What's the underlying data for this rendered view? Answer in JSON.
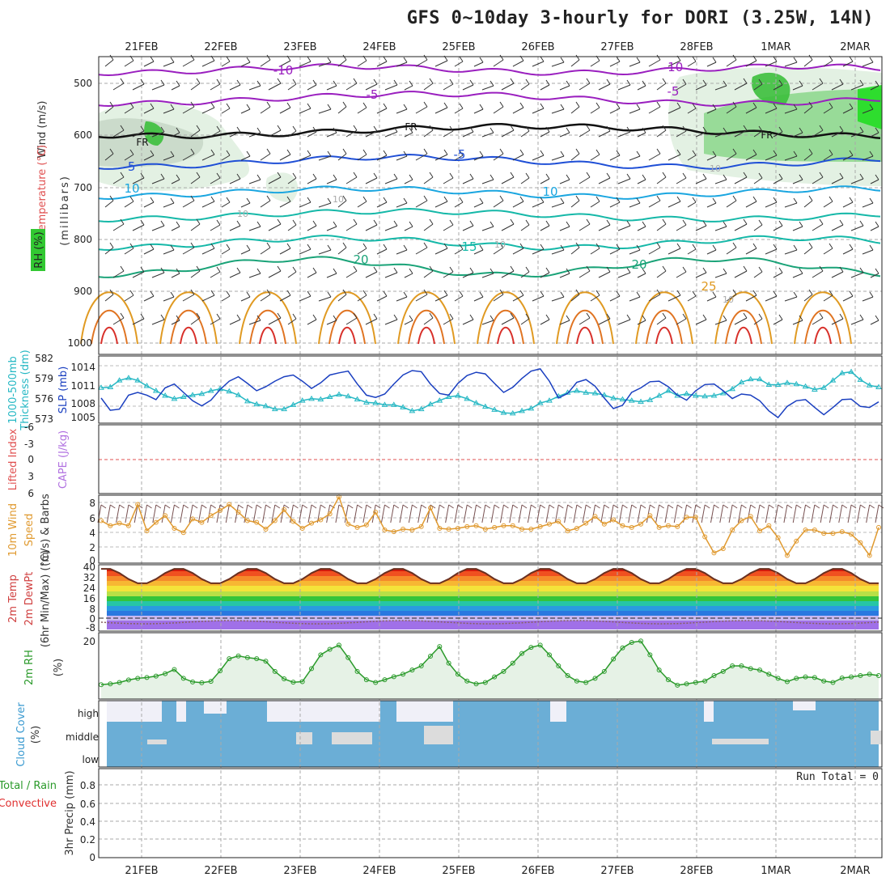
{
  "title": "GFS 0~10day 3-hourly for DORI (3.25W, 14N)",
  "dates": [
    "21FEB",
    "22FEB",
    "23FEB",
    "24FEB",
    "25FEB",
    "26FEB",
    "27FEB",
    "28FEB",
    "1MAR",
    "2MAR"
  ],
  "colors": {
    "purple": "#9a1fbf",
    "black": "#111111",
    "blue": "#1f4fd6",
    "cyan": "#1aa6e0",
    "teal": "#15b8a8",
    "green": "#1aa378",
    "orange": "#e09a22",
    "orange2": "#e07422",
    "red": "#d8302a",
    "cloud": "#6baed6",
    "cloud_light": "#f0f0f8",
    "rh_green": "#32c832",
    "rh_light": "#e0f0e0",
    "slp": "#1a3fc0",
    "thk": "#26b8c4",
    "wind10": "#e09a30",
    "rh2m": "#2a9a2a"
  },
  "panels": {
    "upper": {
      "ylabel_wind": "Wind (m/s)",
      "ylabel_temp": "Temperature (°C)",
      "ylabel_rh": "RH (%)",
      "ylabel_mb": "(millibars)",
      "yticks": [
        "500",
        "600",
        "700",
        "800",
        "900",
        "1000"
      ],
      "contour_labels": [
        "-10",
        "-10",
        "-5",
        "-5",
        "FR",
        "FR",
        "FR",
        "-5",
        "-5",
        "10",
        "10",
        "15",
        "20",
        "20",
        "25",
        "10",
        "10",
        "10",
        "10",
        "10"
      ]
    },
    "thickness": {
      "ylabel1": "1000-500mb",
      "ylabel2": "Thickness (dm)",
      "ylabel3": "SLP (mb)",
      "yticks_left": [
        "582",
        "579",
        "576",
        "573"
      ],
      "yticks_right": [
        "1014",
        "1011",
        "1008",
        "1005"
      ]
    },
    "cape": {
      "ylabel1": "Lifted Index",
      "ylabel2": "CAPE (J/kg)",
      "yticks": [
        "-6",
        "-3",
        "0",
        "3",
        "6"
      ]
    },
    "wind10": {
      "ylabel1": "10m Wind",
      "ylabel2": "Speed",
      "ylabel3": "(m/s) & Barbs",
      "yticks": [
        "8",
        "6",
        "4",
        "2",
        "0"
      ]
    },
    "temp2m": {
      "ylabel1": "2m Temp",
      "ylabel2": "2m DewPt",
      "ylabel3": "(6hr Min/Max) (°C)",
      "yticks": [
        "40",
        "32",
        "24",
        "16",
        "8",
        "0",
        "-8"
      ]
    },
    "rh2m": {
      "ylabel1": "2m RH",
      "ylabel2": "(%)",
      "yticks": [
        "20"
      ]
    },
    "cloud": {
      "ylabel1": "Cloud Cover",
      "ylabel2": "(%)",
      "levels": [
        "high",
        "middle",
        "low"
      ]
    },
    "precip": {
      "ylabel1": "Total / Rain",
      "ylabel2": "Convective",
      "ylabel3": "3hr Precip (mm)",
      "yticks": [
        "0.8",
        "0.6",
        "0.4",
        "0.2",
        "0"
      ],
      "run_total": "Run Total = 0"
    }
  },
  "chart_data": [
    {
      "type": "line",
      "title": "1000-500mb Thickness (dm)",
      "ylim": [
        572,
        583
      ],
      "series": [
        {
          "name": "1000-500mb Thickness (dm)",
          "values": [
            577.8,
            577.9,
            579.0,
            579.4,
            579.0,
            578.1,
            577.3,
            576.5,
            576.0,
            576.3,
            576.6,
            576.8,
            577.3,
            577.6,
            577.2,
            576.6,
            575.6,
            575.1,
            574.8,
            574.3,
            574.3,
            575.0,
            575.7,
            576.0,
            575.9,
            576.3,
            576.7,
            576.4,
            575.9,
            575.4,
            575.3,
            575.0,
            575.0,
            574.6,
            574.0,
            574.3,
            575.1,
            575.7,
            576.3,
            576.5,
            576.0,
            575.3,
            574.7,
            574.2,
            573.7,
            573.6,
            574.0,
            574.4,
            575.3,
            575.7,
            576.4,
            577.0,
            577.3,
            577.0,
            576.9,
            576.6,
            576.1,
            575.9,
            575.7,
            575.5,
            575.8,
            576.5,
            577.3,
            576.5,
            576.8,
            576.5,
            576.4,
            576.5,
            576.9,
            577.6,
            578.7,
            579.2,
            579.2,
            578.3,
            578.3,
            578.6,
            578.4,
            578.0,
            577.5,
            577.8,
            579.0,
            580.2,
            580.4,
            579.1,
            578.2,
            577.9
          ]
        }
      ]
    },
    {
      "type": "line",
      "title": "SLP (mb)",
      "ylim": [
        1004,
        1016
      ],
      "series": [
        {
          "name": "SLP (mb)",
          "values": [
            1008.5,
            1006.3,
            1006.5,
            1009.0,
            1009.5,
            1009.0,
            1008.2,
            1010.3,
            1011.0,
            1009.5,
            1008.0,
            1007.1,
            1008.1,
            1010.0,
            1011.5,
            1012.3,
            1011.1,
            1009.8,
            1010.5,
            1011.5,
            1012.3,
            1012.6,
            1011.5,
            1010.2,
            1011.2,
            1012.6,
            1013.0,
            1013.3,
            1011.0,
            1009.0,
            1008.6,
            1009.2,
            1011.0,
            1012.6,
            1013.4,
            1013.2,
            1011.0,
            1009.3,
            1009.0,
            1011.1,
            1012.5,
            1013.1,
            1012.8,
            1011.1,
            1009.5,
            1010.4,
            1012.0,
            1013.3,
            1013.7,
            1011.5,
            1008.5,
            1009.3,
            1011.3,
            1011.8,
            1010.6,
            1008.5,
            1006.6,
            1007.2,
            1009.5,
            1010.3,
            1011.4,
            1011.5,
            1010.5,
            1009.0,
            1008.1,
            1009.8,
            1010.9,
            1011.0,
            1009.8,
            1008.4,
            1009.2,
            1009.0,
            1008.0,
            1006.2,
            1005.0,
            1007.0,
            1008.0,
            1008.2,
            1006.8,
            1005.5,
            1006.8,
            1008.2,
            1008.3,
            1007.0,
            1006.8,
            1007.8
          ]
        }
      ]
    },
    {
      "type": "line",
      "title": "10m Wind Speed (m/s)",
      "ylim": [
        0,
        8
      ],
      "series": [
        {
          "name": "10m Wind Speed (m/s)",
          "values": [
            5.0,
            4.4,
            4.7,
            4.4,
            6.9,
            3.8,
            4.8,
            5.6,
            4.1,
            3.6,
            5.2,
            4.8,
            5.6,
            6.2,
            6.9,
            6.0,
            5.0,
            4.8,
            4.0,
            5.0,
            6.3,
            4.9,
            4.1,
            4.7,
            5.1,
            5.8,
            7.8,
            4.6,
            4.2,
            4.5,
            6.0,
            3.9,
            3.7,
            4.0,
            3.9,
            4.3,
            6.5,
            4.1,
            4.0,
            4.1,
            4.3,
            4.4,
            4.0,
            4.2,
            4.4,
            4.4,
            4.0,
            4.0,
            4.3,
            4.6,
            4.9,
            3.8,
            4.1,
            4.7,
            5.5,
            4.6,
            5.1,
            4.4,
            4.2,
            4.6,
            5.6,
            4.2,
            4.4,
            4.3,
            5.4,
            5.4,
            3.1,
            1.2,
            1.7,
            3.9,
            5.0,
            5.5,
            3.8,
            4.4,
            3.0,
            0.9,
            2.6,
            3.9,
            3.9,
            3.5,
            3.5,
            3.7,
            3.4,
            2.4,
            0.9,
            4.2
          ]
        }
      ]
    },
    {
      "type": "area",
      "title": "2m RH (%)",
      "ylim": [
        0,
        24
      ],
      "series": [
        {
          "name": "2m RH (%)",
          "values": [
            5.2,
            5.5,
            6.0,
            6.9,
            7.5,
            7.8,
            8.3,
            9.2,
            10.7,
            7.5,
            6.2,
            5.9,
            6.4,
            10.2,
            14.6,
            15.6,
            15.0,
            14.6,
            13.7,
            10.0,
            7.3,
            6.1,
            6.3,
            11.0,
            16.0,
            18.0,
            19.5,
            15.0,
            10.0,
            7.0,
            6.0,
            7.0,
            8.1,
            9.0,
            10.5,
            12.0,
            15.5,
            19.0,
            13.0,
            9.0,
            6.5,
            5.5,
            6.0,
            8.0,
            10.0,
            13.0,
            16.5,
            18.7,
            19.5,
            16.0,
            12.0,
            8.5,
            6.5,
            6.0,
            7.5,
            10.0,
            14.5,
            18.5,
            20.5,
            21.0,
            16.0,
            10.5,
            7.0,
            5.0,
            5.5,
            6.0,
            6.5,
            8.5,
            10.0,
            12.0,
            12.0,
            11.0,
            10.5,
            9.0,
            7.5,
            6.3,
            7.5,
            8.0,
            7.8,
            6.5,
            6.0,
            7.6,
            8.0,
            8.5,
            9.0,
            8.5
          ]
        }
      ]
    }
  ]
}
